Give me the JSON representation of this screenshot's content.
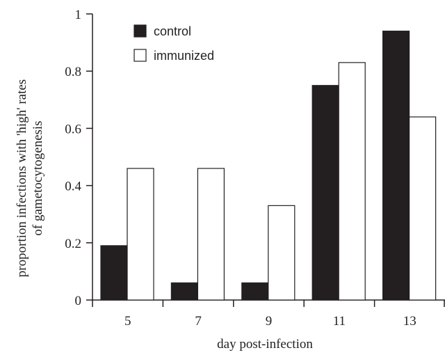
{
  "chart_data": {
    "type": "bar",
    "categories": [
      "5",
      "7",
      "9",
      "11",
      "13"
    ],
    "series": [
      {
        "name": "control",
        "values": [
          0.19,
          0.06,
          0.06,
          0.75,
          0.94
        ],
        "color": "#231f20"
      },
      {
        "name": "immunized",
        "values": [
          0.46,
          0.46,
          0.33,
          0.83,
          0.64
        ],
        "color": "#ffffff"
      }
    ],
    "xlabel": "day post-infection",
    "ylabel_lines": [
      "proportion infections with 'high' rates",
      "of gametocytogenesis"
    ],
    "ylim": [
      0,
      1
    ],
    "yticks": [
      "0",
      "0.2",
      "0.4",
      "0.6",
      "0.8",
      "1"
    ],
    "grid": false,
    "legend_position": "top-left"
  }
}
